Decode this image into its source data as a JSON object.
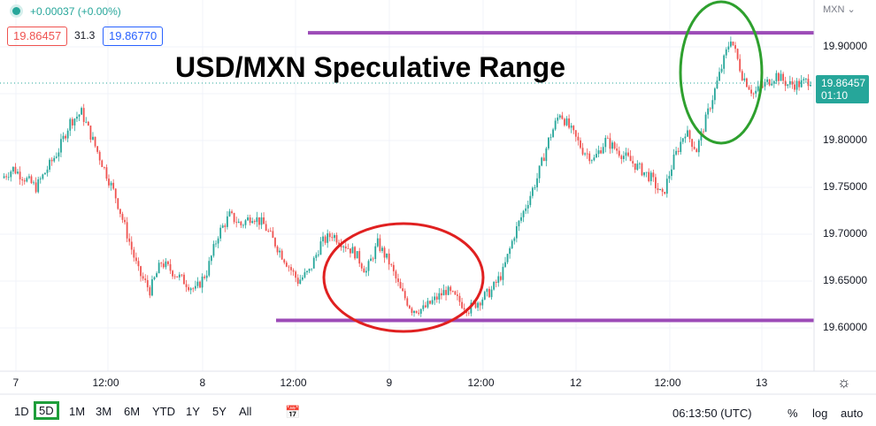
{
  "header": {
    "change_text": "+0.00037 (+0.00%)",
    "bid": "19.86457",
    "spread": "31.3",
    "ask": "19.86770",
    "symbol_label": "MXN"
  },
  "chart_title": "USD/MXN Speculative Range",
  "price_tag": {
    "price": "19.86457",
    "countdown": "01:10"
  },
  "colors": {
    "up": "#26a69a",
    "down": "#ef5350",
    "resistance_line": "#9c4bb7",
    "support_line": "#9c4bb7",
    "red_ellipse": "#e02020",
    "green_ellipse": "#2ea02e",
    "price_tag": "#26a69a",
    "active_timeframe": "#1e9e3a"
  },
  "chart_data": {
    "type": "candlestick",
    "title": "USD/MXN Speculative Range",
    "y_ticks": [
      "19.90000",
      "19.85000",
      "19.80000",
      "19.75000",
      "19.70000",
      "19.65000",
      "19.60000"
    ],
    "x_ticks": [
      "7",
      "12:00",
      "8",
      "12:00",
      "9",
      "12:00",
      "12",
      "12:00",
      "13"
    ],
    "ylim": [
      19.56,
      19.93
    ],
    "x": [
      0,
      2,
      4,
      6,
      8,
      10,
      12,
      14,
      16,
      18,
      20,
      22,
      24,
      26,
      28,
      30,
      32,
      34,
      36,
      38,
      40,
      42,
      44,
      46,
      48,
      50,
      52,
      54,
      56,
      58,
      60,
      62,
      64,
      66,
      68,
      70,
      72,
      74,
      76,
      78,
      80,
      82,
      84,
      86,
      88,
      90,
      92,
      94,
      96,
      98,
      100
    ],
    "close": [
      19.76,
      19.77,
      19.76,
      19.75,
      19.77,
      19.79,
      19.82,
      19.83,
      19.8,
      19.77,
      19.74,
      19.7,
      19.66,
      19.64,
      19.67,
      19.66,
      19.65,
      19.64,
      19.66,
      19.7,
      19.72,
      19.71,
      19.72,
      19.71,
      19.69,
      19.67,
      19.65,
      19.66,
      19.69,
      19.7,
      19.69,
      19.68,
      19.66,
      19.69,
      19.67,
      19.64,
      19.62,
      19.62,
      19.63,
      19.64,
      19.63,
      19.62,
      19.63,
      19.64,
      19.66,
      19.7,
      19.73,
      19.76,
      19.8,
      19.83,
      19.81
    ],
    "close_cont": [
      19.79,
      19.78,
      19.8,
      19.79,
      19.78,
      19.77,
      19.76,
      19.74,
      19.78,
      19.81,
      19.79,
      19.83,
      19.87,
      19.91,
      19.87,
      19.85,
      19.86,
      19.87,
      19.86,
      19.86,
      19.865
    ],
    "x_cont": [
      102,
      104,
      106,
      108,
      110,
      112,
      114,
      116,
      118,
      120,
      122,
      124,
      126,
      128,
      130,
      132,
      134,
      136,
      138,
      140,
      142
    ],
    "resistance": 19.915,
    "support": 19.608,
    "annotations": [
      "resistance line",
      "support line",
      "red ellipse at range low",
      "green ellipse at range high"
    ]
  },
  "y_axis": {
    "ticks": [
      "19.90000",
      "19.85000",
      "19.80000",
      "19.75000",
      "19.70000",
      "19.65000",
      "19.60000"
    ]
  },
  "x_axis": {
    "ticks": [
      "7",
      "12:00",
      "8",
      "12:00",
      "9",
      "12:00",
      "12",
      "12:00",
      "13"
    ]
  },
  "toolbar": {
    "timeframes": [
      "1D",
      "5D",
      "1M",
      "3M",
      "6M",
      "YTD",
      "1Y",
      "5Y",
      "All"
    ],
    "active": "5D",
    "clock": "06:13:50 (UTC)",
    "percent": "%",
    "log": "log",
    "auto": "auto"
  }
}
